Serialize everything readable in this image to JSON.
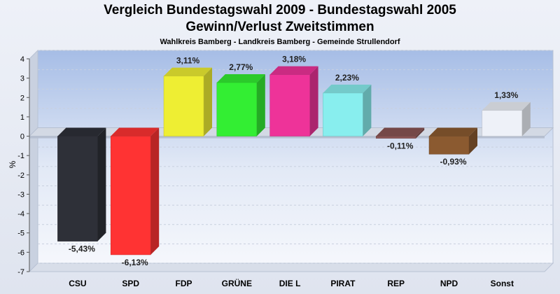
{
  "header": {
    "title": "Vergleich Bundestagswahl 2009 - Bundestagswahl 2005",
    "subtitle": "Gewinn/Verlust Zweitstimmen",
    "caption": "Wahlkreis Bamberg - Landkreis Bamberg - Gemeinde Strullendorf"
  },
  "chart_data": {
    "type": "bar",
    "title": "Vergleich Bundestagswahl 2009 - Bundestagswahl 2005",
    "subtitle": "Gewinn/Verlust Zweitstimmen",
    "ylabel": "%",
    "ylim": [
      -7,
      4
    ],
    "yticks": [
      4,
      3,
      2,
      1,
      0,
      -1,
      -2,
      -3,
      -4,
      -5,
      -6,
      -7
    ],
    "grid": true,
    "categories": [
      "CSU",
      "SPD",
      "FDP",
      "GRÜNE",
      "DIE L",
      "PIRAT",
      "REP",
      "NPD",
      "Sonst"
    ],
    "values": [
      -5.43,
      -6.13,
      3.11,
      2.77,
      3.18,
      2.23,
      -0.11,
      -0.93,
      1.33
    ],
    "value_labels": [
      "-5,43%",
      "-6,13%",
      "3,11%",
      "2,77%",
      "3,18%",
      "2,23%",
      "-0,11%",
      "-0,93%",
      "1,33%"
    ],
    "colors": [
      "#2e3038",
      "#ff3333",
      "#eeee33",
      "#33ee33",
      "#ee3399",
      "#88eeee",
      "#8a5555",
      "#8b5a30",
      "#eef1f8"
    ]
  }
}
